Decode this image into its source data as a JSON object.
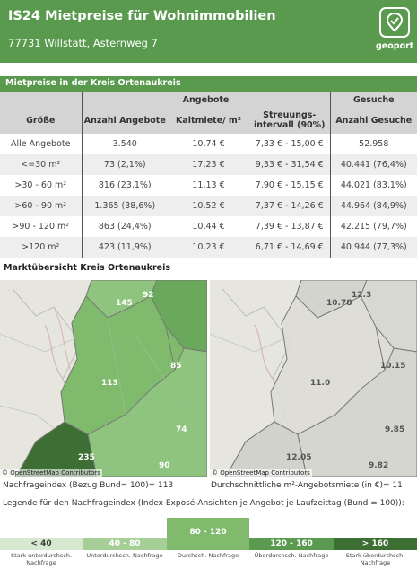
{
  "header": {
    "title": "IS24 Mietpreise für Wohnimmobilien",
    "address": "77731 Willstätt, Asternweg 7",
    "logo_text": "geoport"
  },
  "rent_table": {
    "section_title": "Mietpreise in der Kreis Ortenaukreis",
    "group_headers": {
      "angebote": "Angebote",
      "gesuche": "Gesuche"
    },
    "columns": {
      "groesse": "Größe",
      "anzahl_angebote": "Anzahl Angebote",
      "kaltmiete": "Kaltmiete/ m²",
      "streuung_1": "Streuungs-",
      "streuung_2": "intervall (90%)",
      "anzahl_gesuche": "Anzahl Gesuche"
    },
    "rows": [
      {
        "groesse": "Alle Angebote",
        "anzahl": "3.540",
        "kaltmiete": "10,74 €",
        "intervall": "7,33 € - 15,00 €",
        "gesuche": "52.958"
      },
      {
        "groesse": "<=30 m²",
        "anzahl": "73 (2,1%)",
        "kaltmiete": "17,23 €",
        "intervall": "9,33 € - 31,54 €",
        "gesuche": "40.441 (76,4%)"
      },
      {
        "groesse": ">30 - 60 m²",
        "anzahl": "816 (23,1%)",
        "kaltmiete": "11,13 €",
        "intervall": "7,90 € - 15,15 €",
        "gesuche": "44.021 (83,1%)"
      },
      {
        "groesse": ">60 - 90 m²",
        "anzahl": "1.365 (38,6%)",
        "kaltmiete": "10,52 €",
        "intervall": "7,37 € - 14,26 €",
        "gesuche": "44.964 (84,9%)"
      },
      {
        "groesse": ">90 - 120 m²",
        "anzahl": "863 (24,4%)",
        "kaltmiete": "10,44 €",
        "intervall": "7,39 € - 13,87 €",
        "gesuche": "42.215 (79,7%)"
      },
      {
        "groesse": ">120 m²",
        "anzahl": "423 (11,9%)",
        "kaltmiete": "10,23 €",
        "intervall": "6,71 € - 14,69 €",
        "gesuche": "40.944 (77,3%)"
      }
    ]
  },
  "market": {
    "section_title": "Marktübersicht Kreis Ortenaukreis",
    "attribution": "© OpenStreetMap Contributors",
    "left_map": {
      "values": [
        "92",
        "145",
        "85",
        "113",
        "74",
        "235",
        "90"
      ],
      "caption": "Nachfrageindex (Bezug Bund= 100)= 113"
    },
    "right_map": {
      "values": [
        "12.3",
        "10.78",
        "10.15",
        "11.0",
        "9.85",
        "12.05",
        "9.82"
      ],
      "caption": "Durchschnittliche m²-Angebotsmiete (in €)= 11"
    }
  },
  "legend": {
    "title": "Legende für den Nachfrageindex (Index Exposé-Ansichten je Angebot je Laufzeittag (Bund = 100)):",
    "items": [
      {
        "label": "< 40",
        "sub_1": "Stark unterdurchsch.",
        "sub_2": "Nachfrage",
        "color": "#d6e8d0",
        "text_color": "#3c3c3c"
      },
      {
        "label": "40 - 80",
        "sub_1": "Unterdurchsch. Nachfrage",
        "sub_2": "",
        "color": "#a6cf98",
        "text_color": "#ffffff"
      },
      {
        "label": "80 - 120",
        "sub_1": "Durchsch. Nachfrage",
        "sub_2": "",
        "color": "#7fba6d",
        "text_color": "#ffffff"
      },
      {
        "label": "120 - 160",
        "sub_1": "Überdurchsch. Nachfrage",
        "sub_2": "",
        "color": "#5a9a4e",
        "text_color": "#ffffff"
      },
      {
        "label": "> 160",
        "sub_1": "Stark überdurchsch.",
        "sub_2": "Nachfrage",
        "color": "#3d6f35",
        "text_color": "#ffffff"
      }
    ]
  }
}
